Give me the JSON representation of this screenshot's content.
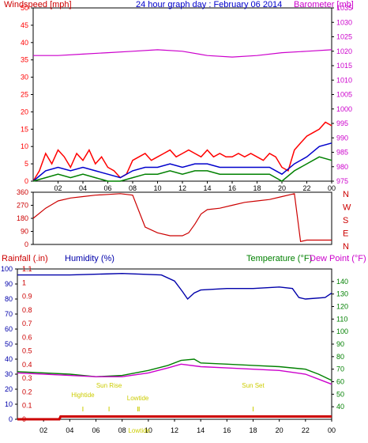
{
  "colors": {
    "windspeed": "#ff0000",
    "gust": "#ff0000",
    "avgwind": "#0000cc",
    "lowwind": "#008000",
    "barometer": "#cc00cc",
    "direction": "#cc0000",
    "rain": "#cc0000",
    "humidity": "#0000aa",
    "temperature": "#008000",
    "dewpoint": "#cc00cc",
    "tide": "#cccc00",
    "frame": "#000000"
  },
  "chart_data": [
    {
      "type": "line",
      "id": "wind-baro",
      "title": "24 hour graph day : February 06 2014",
      "left_axis_label": "Windspeed [mph]",
      "right_axis_label": "Barometer [mb]",
      "left_ticks": [
        0,
        5,
        10,
        15,
        20,
        25,
        30,
        35,
        40,
        45,
        50
      ],
      "right_ticks": [
        975,
        980,
        985,
        990,
        995,
        1000,
        1005,
        1010,
        1015,
        1020,
        1025,
        1030,
        1035
      ],
      "x_ticks": [
        "02",
        "04",
        "06",
        "08",
        "10",
        "12",
        "14",
        "16",
        "18",
        "20",
        "22",
        "00"
      ],
      "series": [
        {
          "name": "Windspeed",
          "points": [
            [
              0,
              0
            ],
            [
              0.5,
              3
            ],
            [
              1,
              8
            ],
            [
              1.5,
              5
            ],
            [
              2,
              9
            ],
            [
              2.5,
              7
            ],
            [
              3,
              4
            ],
            [
              3.5,
              8
            ],
            [
              4,
              6
            ],
            [
              4.5,
              9
            ],
            [
              5,
              5
            ],
            [
              5.5,
              7
            ],
            [
              6,
              4
            ],
            [
              6.5,
              3
            ],
            [
              7,
              1
            ],
            [
              7.5,
              2
            ],
            [
              8,
              6
            ],
            [
              8.5,
              7
            ],
            [
              9,
              8
            ],
            [
              9.5,
              6
            ],
            [
              10,
              7
            ],
            [
              10.5,
              8
            ],
            [
              11,
              9
            ],
            [
              11.5,
              7
            ],
            [
              12,
              8
            ],
            [
              12.5,
              9
            ],
            [
              13,
              8
            ],
            [
              13.5,
              7
            ],
            [
              14,
              9
            ],
            [
              14.5,
              7
            ],
            [
              15,
              8
            ],
            [
              15.5,
              7
            ],
            [
              16,
              7
            ],
            [
              16.5,
              8
            ],
            [
              17,
              7
            ],
            [
              17.5,
              8
            ],
            [
              18,
              7
            ],
            [
              18.5,
              6
            ],
            [
              19,
              8
            ],
            [
              19.5,
              7
            ],
            [
              20,
              4
            ],
            [
              20.5,
              3
            ],
            [
              21,
              9
            ],
            [
              21.5,
              11
            ],
            [
              22,
              13
            ],
            [
              22.5,
              14
            ],
            [
              23,
              15
            ],
            [
              23.5,
              17
            ],
            [
              24,
              16
            ]
          ]
        },
        {
          "name": "Average",
          "points": [
            [
              0,
              0
            ],
            [
              1,
              3
            ],
            [
              2,
              4
            ],
            [
              3,
              3
            ],
            [
              4,
              4
            ],
            [
              5,
              3
            ],
            [
              6,
              2
            ],
            [
              7,
              1
            ],
            [
              8,
              3
            ],
            [
              9,
              4
            ],
            [
              10,
              4
            ],
            [
              11,
              5
            ],
            [
              12,
              4
            ],
            [
              13,
              5
            ],
            [
              14,
              5
            ],
            [
              15,
              4
            ],
            [
              16,
              4
            ],
            [
              17,
              4
            ],
            [
              18,
              4
            ],
            [
              19,
              4
            ],
            [
              20,
              2
            ],
            [
              21,
              5
            ],
            [
              22,
              7
            ],
            [
              23,
              10
            ],
            [
              24,
              11
            ]
          ]
        },
        {
          "name": "Low",
          "points": [
            [
              0,
              0
            ],
            [
              1,
              1
            ],
            [
              2,
              2
            ],
            [
              3,
              1
            ],
            [
              4,
              2
            ],
            [
              5,
              1
            ],
            [
              6,
              0
            ],
            [
              7,
              0
            ],
            [
              8,
              1
            ],
            [
              9,
              2
            ],
            [
              10,
              2
            ],
            [
              11,
              3
            ],
            [
              12,
              2
            ],
            [
              13,
              3
            ],
            [
              14,
              3
            ],
            [
              15,
              2
            ],
            [
              16,
              2
            ],
            [
              17,
              2
            ],
            [
              18,
              2
            ],
            [
              19,
              2
            ],
            [
              20,
              0
            ],
            [
              21,
              3
            ],
            [
              22,
              5
            ],
            [
              23,
              7
            ],
            [
              24,
              6
            ]
          ]
        },
        {
          "name": "Barometer",
          "points": [
            [
              0,
              1018.5
            ],
            [
              2,
              1018.5
            ],
            [
              4,
              1019
            ],
            [
              6,
              1019.5
            ],
            [
              8,
              1020
            ],
            [
              10,
              1020.5
            ],
            [
              12,
              1020
            ],
            [
              14,
              1018.5
            ],
            [
              16,
              1018
            ],
            [
              18,
              1018.5
            ],
            [
              20,
              1019.5
            ],
            [
              22,
              1020
            ],
            [
              24,
              1020.5
            ]
          ]
        }
      ],
      "left_range": [
        0,
        50
      ],
      "right_range": [
        975,
        1035
      ]
    },
    {
      "type": "line",
      "id": "direction",
      "left_ticks": [
        0,
        90,
        180,
        270,
        360
      ],
      "right_labels": [
        "N",
        "W",
        "S",
        "E",
        "N"
      ],
      "x_ticks": [
        "02",
        "04",
        "06",
        "08",
        "10",
        "12",
        "14",
        "16",
        "18",
        "20",
        "22",
        "00"
      ],
      "series": [
        {
          "name": "Direction",
          "points": [
            [
              0,
              180
            ],
            [
              1,
              250
            ],
            [
              2,
              300
            ],
            [
              3,
              320
            ],
            [
              4,
              330
            ],
            [
              5,
              340
            ],
            [
              6,
              345
            ],
            [
              7,
              350
            ],
            [
              8,
              340
            ],
            [
              9,
              120
            ],
            [
              10,
              80
            ],
            [
              11,
              60
            ],
            [
              12,
              60
            ],
            [
              12.5,
              80
            ],
            [
              13,
              140
            ],
            [
              13.5,
              210
            ],
            [
              14,
              240
            ],
            [
              15,
              250
            ],
            [
              16,
              270
            ],
            [
              17,
              290
            ],
            [
              18,
              300
            ],
            [
              19,
              310
            ],
            [
              20,
              330
            ],
            [
              21,
              350
            ],
            [
              21.5,
              20
            ],
            [
              22,
              30
            ],
            [
              23,
              30
            ],
            [
              24,
              30
            ]
          ]
        }
      ],
      "range": [
        0,
        360
      ]
    },
    {
      "type": "line",
      "id": "rain-hum-temp",
      "labels": {
        "rain": "Rainfall (.in)",
        "humidity": "Humidity (%)",
        "temperature": "Temperature (°F)",
        "dewpoint": "Dew Point (°F)"
      },
      "humidity_ticks": [
        0,
        10,
        20,
        30,
        40,
        50,
        60,
        70,
        80,
        90,
        100
      ],
      "rain_ticks": [
        "0",
        "0.1",
        "0.2",
        "0.3",
        "0.4",
        "0.5",
        "0.6",
        "0.7",
        "0.8",
        "0.9",
        "1",
        "1.1"
      ],
      "temp_ticks": [
        40,
        50,
        60,
        70,
        80,
        90,
        100,
        110,
        120,
        130,
        140
      ],
      "x_ticks": [
        "02",
        "04",
        "06",
        "08",
        "10",
        "12",
        "14",
        "16",
        "18",
        "20",
        "22",
        "00"
      ],
      "annotations": [
        "Hightide",
        "Sun Rise",
        "Lowtide",
        "Lowtide",
        "Sun Set"
      ],
      "series": [
        {
          "name": "Humidity",
          "points": [
            [
              0,
              96
            ],
            [
              4,
              96
            ],
            [
              8,
              97
            ],
            [
              11,
              96
            ],
            [
              12,
              92
            ],
            [
              12.6,
              85
            ],
            [
              13,
              80
            ],
            [
              13.5,
              84
            ],
            [
              14,
              86
            ],
            [
              16,
              87
            ],
            [
              18,
              87
            ],
            [
              20,
              88
            ],
            [
              21,
              87
            ],
            [
              21.5,
              81
            ],
            [
              22,
              80
            ],
            [
              23.5,
              81
            ],
            [
              24,
              84
            ]
          ]
        },
        {
          "name": "Temperature",
          "points": [
            [
              0,
              68
            ],
            [
              4,
              66
            ],
            [
              6,
              64
            ],
            [
              8,
              65
            ],
            [
              10,
              69
            ],
            [
              11.5,
              73
            ],
            [
              12.5,
              77
            ],
            [
              13.5,
              78
            ],
            [
              14,
              75
            ],
            [
              16,
              74
            ],
            [
              18,
              73
            ],
            [
              20,
              72
            ],
            [
              22,
              70
            ],
            [
              23,
              66
            ],
            [
              24,
              61
            ]
          ]
        },
        {
          "name": "Dew Point",
          "points": [
            [
              0,
              67
            ],
            [
              4,
              65
            ],
            [
              6,
              64
            ],
            [
              8,
              64
            ],
            [
              10,
              67
            ],
            [
              11.5,
              71
            ],
            [
              12.5,
              74
            ],
            [
              14,
              72
            ],
            [
              16,
              71
            ],
            [
              18,
              70
            ],
            [
              20,
              69
            ],
            [
              22,
              66
            ],
            [
              23,
              62
            ],
            [
              24,
              58
            ]
          ]
        },
        {
          "name": "Rainfall",
          "points": [
            [
              0,
              0
            ],
            [
              3.2,
              0
            ],
            [
              3.3,
              0.02
            ],
            [
              24,
              0.02
            ]
          ]
        }
      ],
      "ranges": {
        "humidity": [
          0,
          100
        ],
        "rain": [
          0,
          1.1
        ],
        "temperature": [
          30,
          150
        ]
      }
    }
  ]
}
